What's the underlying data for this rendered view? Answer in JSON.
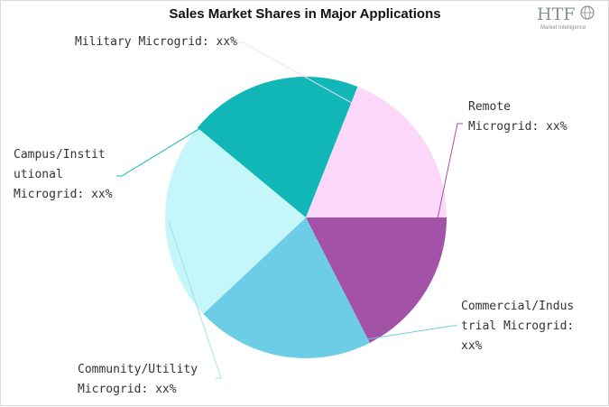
{
  "chart_data": {
    "type": "pie",
    "title": "Sales Market Shares in Major Applications",
    "slices": [
      {
        "label": "Remote Microgrid: xx%",
        "value": 17.5,
        "color": "#a352a8"
      },
      {
        "label": "Commercial/Industrial Microgrid: xx%",
        "value": 20.5,
        "color": "#6dcde6"
      },
      {
        "label": "Community/Utility Microgrid: xx%",
        "value": 23.0,
        "color": "#c5f6f9"
      },
      {
        "label": "Campus/Institutional Microgrid: xx%",
        "value": 20.0,
        "color": "#11b6b6"
      },
      {
        "label": "Military Microgrid: xx%",
        "value": 19.0,
        "color": "#fbd7f9"
      }
    ],
    "legend": "none",
    "start_angle_deg": 0,
    "direction": "clockwise"
  },
  "logo": {
    "text": "HTF",
    "subtext": "Market Intelligence"
  }
}
